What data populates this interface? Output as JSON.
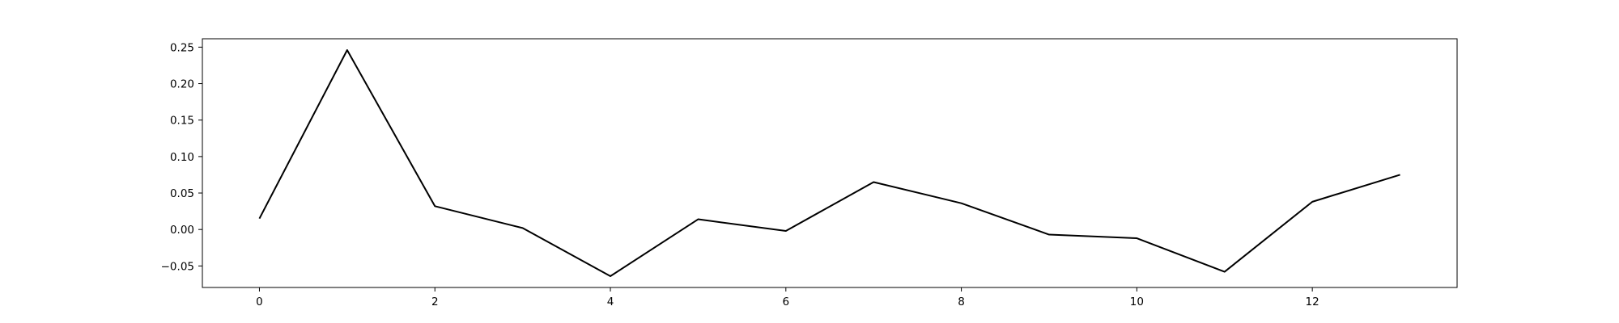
{
  "chart_data": {
    "type": "line",
    "title": "",
    "xlabel": "",
    "ylabel": "",
    "x": [
      0,
      1,
      2,
      3,
      4,
      5,
      6,
      7,
      8,
      9,
      10,
      11,
      12,
      13
    ],
    "series": [
      {
        "values": [
          0.015,
          0.246,
          0.032,
          0.002,
          -0.064,
          0.014,
          -0.002,
          0.065,
          0.036,
          -0.007,
          -0.012,
          -0.058,
          0.038,
          0.075
        ],
        "color": "#000000"
      }
    ],
    "xlim": [
      -0.65,
      13.65
    ],
    "ylim": [
      -0.0795,
      0.2615
    ],
    "xticks": [
      0,
      2,
      4,
      6,
      8,
      10,
      12
    ],
    "xtick_labels": [
      "0",
      "2",
      "4",
      "6",
      "8",
      "10",
      "12"
    ],
    "yticks": [
      -0.05,
      0.0,
      0.05,
      0.1,
      0.15,
      0.2,
      0.25
    ],
    "ytick_labels": [
      "−0.05",
      "0.00",
      "0.05",
      "0.10",
      "0.15",
      "0.20",
      "0.25"
    ],
    "grid": false,
    "legend": false
  }
}
